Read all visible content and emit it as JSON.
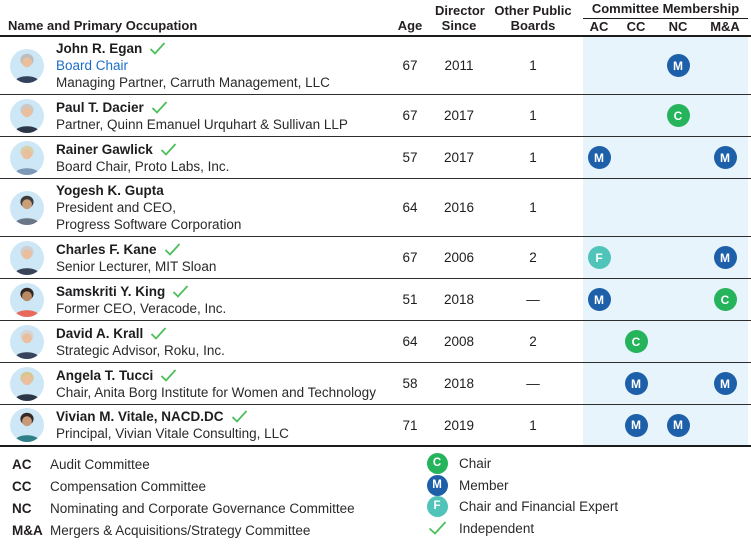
{
  "colors": {
    "member_blue": "#1d5fa9",
    "chair_green": "#25b35c",
    "expert_teal": "#50c4b8",
    "check_green": "#4bbf5a",
    "link_blue": "#1b6ec8",
    "band_blue": "#e8f4fb"
  },
  "table": {
    "headers": {
      "name": "Name and Primary Occupation",
      "age": "Age",
      "since_line1": "Director",
      "since_line2": "Since",
      "boards_line1": "Other Public",
      "boards_line2": "Boards",
      "committee_title": "Committee Membership",
      "committee_cols": [
        "AC",
        "CC",
        "NC",
        "M&A"
      ]
    },
    "rows": [
      {
        "name": "John R. Egan",
        "independent": true,
        "role": "Board Chair",
        "occupation_lines": [
          "Managing Partner, Carruth Management, LLC"
        ],
        "age": "67",
        "since": "2011",
        "boards": "1",
        "committees": [
          "",
          "",
          "M",
          ""
        ],
        "avatar": {
          "bg": "#cde7f6",
          "hair": "#bdbdbd",
          "skin": "#eabf9d",
          "top": "#33415c"
        }
      },
      {
        "name": "Paul T. Dacier",
        "independent": true,
        "role": "",
        "occupation_lines": [
          "Partner, Quinn Emanuel Urquhart & Sullivan LLP"
        ],
        "age": "67",
        "since": "2017",
        "boards": "1",
        "committees": [
          "",
          "",
          "C",
          ""
        ],
        "avatar": {
          "bg": "#cde7f6",
          "hair": "#c9c9c9",
          "skin": "#eabf9d",
          "top": "#2d3748"
        }
      },
      {
        "name": "Rainer Gawlick",
        "independent": true,
        "role": "",
        "occupation_lines": [
          "Board Chair, Proto Labs, Inc."
        ],
        "age": "57",
        "since": "2017",
        "boards": "1",
        "committees": [
          "M",
          "",
          "",
          "M"
        ],
        "avatar": {
          "bg": "#cde7f6",
          "hair": "#d8cfa8",
          "skin": "#eabf9d",
          "top": "#7d99b8"
        }
      },
      {
        "name": "Yogesh K. Gupta",
        "independent": false,
        "role": "",
        "occupation_lines": [
          "President and CEO,",
          "Progress Software Corporation"
        ],
        "age": "64",
        "since": "2016",
        "boards": "1",
        "committees": [
          "",
          "",
          "",
          ""
        ],
        "avatar": {
          "bg": "#cde7f6",
          "hair": "#3c3c3c",
          "skin": "#caa07a",
          "top": "#6b7686"
        }
      },
      {
        "name": "Charles F. Kane",
        "independent": true,
        "role": "",
        "occupation_lines": [
          "Senior Lecturer, MIT Sloan"
        ],
        "age": "67",
        "since": "2006",
        "boards": "2",
        "committees": [
          "F",
          "",
          "",
          "M"
        ],
        "avatar": {
          "bg": "#cde7f6",
          "hair": "#cfcfcf",
          "skin": "#eabf9d",
          "top": "#3a4458"
        }
      },
      {
        "name": "Samskriti Y. King",
        "independent": true,
        "role": "",
        "occupation_lines": [
          "Former CEO, Veracode, Inc."
        ],
        "age": "51",
        "since": "2018",
        "boards": "—",
        "committees": [
          "M",
          "",
          "",
          "C"
        ],
        "avatar": {
          "bg": "#cde7f6",
          "hair": "#2e2624",
          "skin": "#b98a64",
          "top": "#e8685c"
        }
      },
      {
        "name": "David A. Krall",
        "independent": true,
        "role": "",
        "occupation_lines": [
          "Strategic Advisor, Roku, Inc."
        ],
        "age": "64",
        "since": "2008",
        "boards": "2",
        "committees": [
          "",
          "C",
          "",
          ""
        ],
        "avatar": {
          "bg": "#cde7f6",
          "hair": "#d5d5d5",
          "skin": "#eabf9d",
          "top": "#37435a"
        }
      },
      {
        "name": "Angela T. Tucci",
        "independent": true,
        "role": "",
        "occupation_lines": [
          "Chair, Anita Borg Institute for Women and Technology"
        ],
        "age": "58",
        "since": "2018",
        "boards": "—",
        "committees": [
          "",
          "M",
          "",
          "M"
        ],
        "avatar": {
          "bg": "#cde7f6",
          "hair": "#d9c68e",
          "skin": "#eabf9d",
          "top": "#2c3547"
        }
      },
      {
        "name": "Vivian M. Vitale, NACD.DC",
        "independent": true,
        "role": "",
        "occupation_lines": [
          "Principal, Vivian Vitale Consulting, LLC"
        ],
        "age": "71",
        "since": "2019",
        "boards": "1",
        "committees": [
          "",
          "M",
          "M",
          ""
        ],
        "avatar": {
          "bg": "#cde7f6",
          "hair": "#352a28",
          "skin": "#c89a77",
          "top": "#2e7f86"
        }
      }
    ]
  },
  "legend": {
    "committees": [
      {
        "abbr": "AC",
        "label": "Audit Committee"
      },
      {
        "abbr": "CC",
        "label": "Compensation Committee"
      },
      {
        "abbr": "NC",
        "label": "Nominating and Corporate Governance Committee"
      },
      {
        "abbr": "M&A",
        "label": "Mergers & Acquisitions/Strategy Committee"
      }
    ],
    "symbols": [
      {
        "symbol": "C",
        "label": "Chair"
      },
      {
        "symbol": "M",
        "label": "Member"
      },
      {
        "symbol": "F",
        "label": "Chair and Financial Expert"
      },
      {
        "symbol": "check",
        "label": "Independent"
      }
    ]
  }
}
